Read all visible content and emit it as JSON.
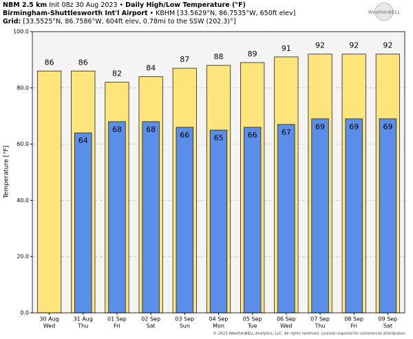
{
  "chart_data": {
    "type": "bar",
    "model": "NBM 2.5 km",
    "init": "Init 08z 30 Aug 2023 •",
    "title": "Daily High/Low Temperature (°F)",
    "station": "Birmingham-Shuttlesworth Int'l Airport",
    "station_info": "• KBHM [33.5629°N, 86.7535°W, 650ft elev]",
    "grid_label": "Grid:",
    "grid_info": "[33.5525°N, 86.7586°W, 604ft elev, 0.78mi to the SSW (202.3)°]",
    "logo": "WeatherBELL",
    "ylabel": "Temperature [°F]",
    "footer": "© 2023 WeatherBELL Analytics, LLC. All rights reserved. License required for commercial distribution.",
    "categories": [
      "30 Aug",
      "31 Aug",
      "01 Sep",
      "02 Sep",
      "03 Sep",
      "04 Sep",
      "05 Sep",
      "06 Sep",
      "07 Sep",
      "08 Sep",
      "09 Sep"
    ],
    "weekdays": [
      "Wed",
      "Thu",
      "Fri",
      "Sat",
      "Sun",
      "Mon",
      "Tue",
      "Wed",
      "Thu",
      "Fri",
      "Sat"
    ],
    "series": [
      {
        "name": "High",
        "color": "#fde57c",
        "values": [
          86,
          86,
          82,
          84,
          87,
          88,
          89,
          91,
          92,
          92,
          92
        ]
      },
      {
        "name": "Low",
        "color": "#5b8ee8",
        "values": [
          null,
          64,
          68,
          68,
          66,
          65,
          66,
          67,
          69,
          69,
          69
        ]
      }
    ],
    "ylim": [
      0,
      100
    ],
    "yticks": [
      {
        "value": 0,
        "label": "0.0"
      },
      {
        "value": 20,
        "label": "20.0"
      },
      {
        "value": 40,
        "label": "40.0"
      },
      {
        "value": 60,
        "label": "60.0"
      },
      {
        "value": 80,
        "label": "80.0"
      },
      {
        "value": 100,
        "label": "100.0"
      }
    ],
    "grid": true
  }
}
